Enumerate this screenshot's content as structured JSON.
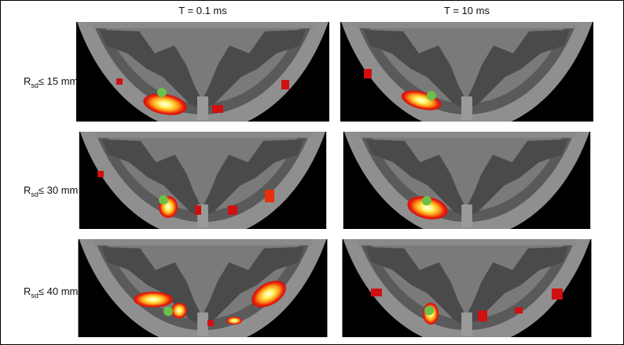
{
  "columns": [
    "T = 0.1 ms",
    "T = 10 ms"
  ],
  "rows": [
    {
      "label": "R",
      "subscript": "sd",
      "suffix": "≤ 15 mm"
    },
    {
      "label": "R",
      "subscript": "sd",
      "suffix": "≤ 30 mm"
    },
    {
      "label": "R",
      "subscript": "sd",
      "suffix": "≤ 40 mm"
    }
  ]
}
